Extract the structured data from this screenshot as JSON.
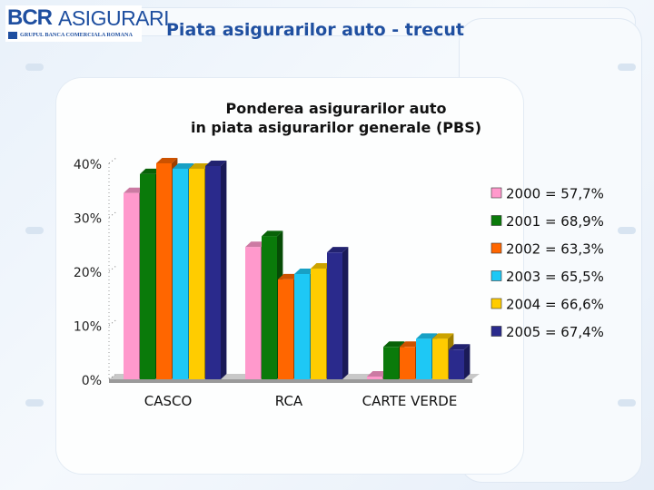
{
  "header": {
    "logo_bcr": "BCR",
    "logo_asigurari": "ASIGURARI",
    "logo_subtitle": "GRUPUL BANCA COMERCIALA ROMANA",
    "page_title": "Piata asigurarilor auto - trecut"
  },
  "colors": {
    "accent": "#1f4fa0",
    "series": [
      "#ff99cc",
      "#0a7a0a",
      "#ff6600",
      "#1ec8f5",
      "#ffcc00",
      "#2a2a8c"
    ]
  },
  "chart_data": {
    "type": "bar",
    "title_line1": "Ponderea asigurarilor auto",
    "title_line2": "in piata asigurarilor generale (PBS)",
    "categories": [
      "CASCO",
      "RCA",
      "CARTE VERDE"
    ],
    "ylim": [
      0,
      40
    ],
    "yticks": [
      "40%",
      "30%",
      "20%",
      "10%",
      "0%"
    ],
    "ytick_values": [
      40,
      30,
      20,
      10,
      0
    ],
    "legend_position": "right",
    "series": [
      {
        "name": "2000",
        "legend": "2000 = 57,7%",
        "values": [
          34.5,
          24.5,
          0.5
        ]
      },
      {
        "name": "2001",
        "legend": "2001 = 68,9%",
        "values": [
          38,
          26.5,
          6
        ]
      },
      {
        "name": "2002",
        "legend": "2002 = 63,3%",
        "values": [
          40,
          18.5,
          6
        ]
      },
      {
        "name": "2003",
        "legend": "2003 = 65,5%",
        "values": [
          39,
          19.5,
          7.5
        ]
      },
      {
        "name": "2004",
        "legend": "2004 = 66,6%",
        "values": [
          39,
          20.5,
          7.5
        ]
      },
      {
        "name": "2005",
        "legend": "2005 = 67,4%",
        "values": [
          39.5,
          23.5,
          5.5
        ]
      }
    ]
  }
}
